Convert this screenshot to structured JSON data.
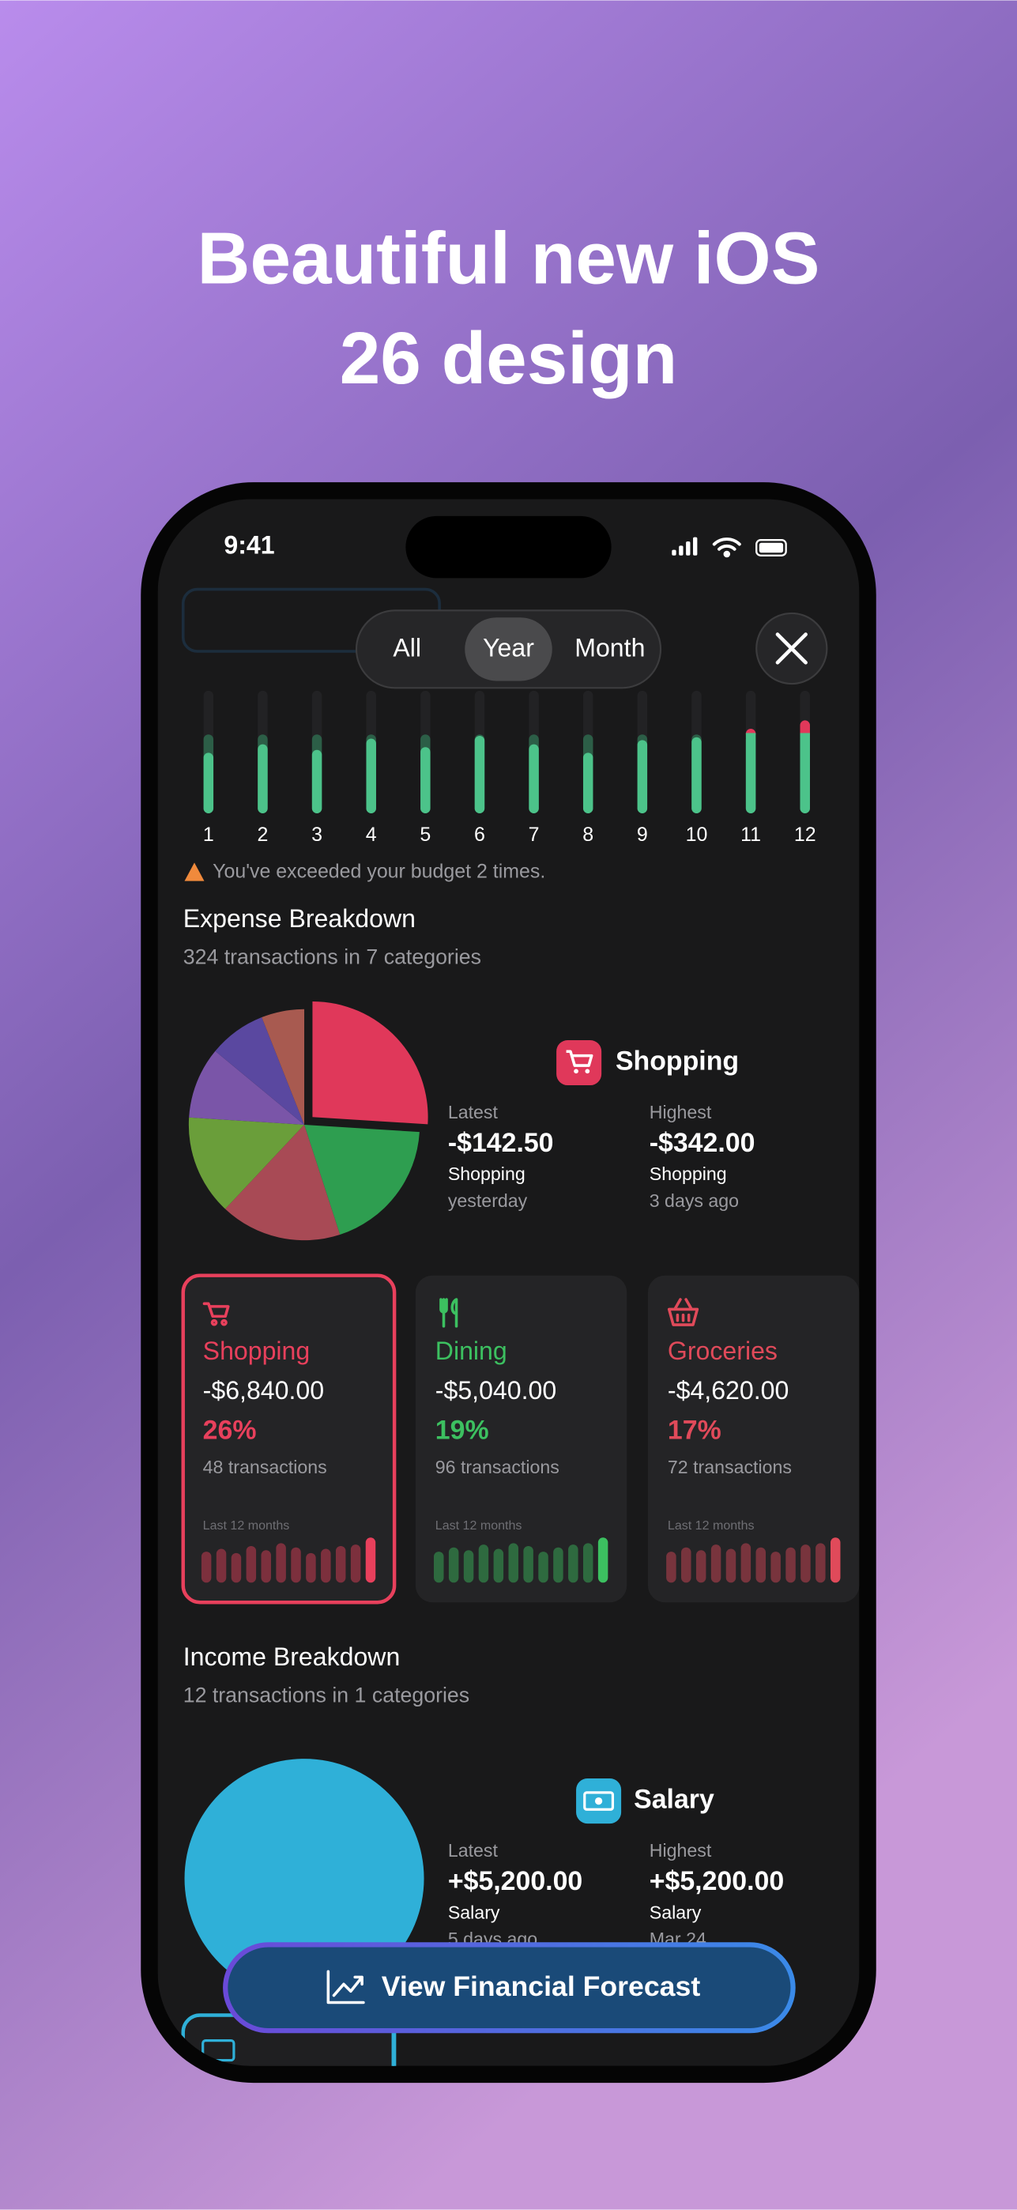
{
  "header": {
    "title_lines": [
      "Beautiful new iOS",
      "26 design"
    ]
  },
  "status_bar": {
    "time": "9:41"
  },
  "segmented_control": {
    "options": [
      "All",
      "Year",
      "Month"
    ],
    "selected": 1
  },
  "monthly_chart": {
    "type": "bar",
    "categories": [
      "1",
      "2",
      "3",
      "4",
      "5",
      "6",
      "7",
      "8",
      "9",
      "10",
      "11",
      "12"
    ],
    "values": [
      43,
      49,
      45,
      53,
      47,
      55,
      49,
      43,
      52,
      54,
      60,
      66
    ],
    "budget": 56,
    "color": "#4cc38a",
    "budget_color": "#2c5e47",
    "over_color": "#e0385a"
  },
  "budget_warning": "You've exceeded your budget 2 times.",
  "expense": {
    "title": "Expense Breakdown",
    "subtitle": "324 transactions in 7 categories",
    "pie": {
      "type": "pie",
      "values": [
        26,
        19,
        17,
        14,
        10,
        8,
        6
      ],
      "colors": [
        "#e0385a",
        "#2e9e50",
        "#a84a55",
        "#6a9e3a",
        "#7a55a8",
        "#5a48a0",
        "#a85a50"
      ]
    },
    "featured": {
      "name": "Shopping",
      "latest": {
        "label": "Latest",
        "amount": "-$142.50",
        "category": "Shopping",
        "when": "yesterday"
      },
      "highest": {
        "label": "Highest",
        "amount": "-$342.00",
        "category": "Shopping",
        "when": "3 days ago"
      }
    },
    "history_label": "Last 12 months",
    "cards": [
      {
        "name": "Shopping",
        "amount": "-$6,840.00",
        "percent": "26%",
        "transactions": "48 transactions",
        "color": "#e8405c",
        "selected": true,
        "history": [
          22,
          24,
          21,
          26,
          23,
          28,
          25,
          21,
          24,
          26,
          27,
          32
        ]
      },
      {
        "name": "Dining",
        "amount": "-$5,040.00",
        "percent": "19%",
        "transactions": "96 transactions",
        "color": "#3cc060",
        "selected": false,
        "history": [
          22,
          25,
          23,
          27,
          24,
          28,
          26,
          22,
          25,
          27,
          28,
          32
        ]
      },
      {
        "name": "Groceries",
        "amount": "-$4,620.00",
        "percent": "17%",
        "transactions": "72 transactions",
        "color": "#e04a5a",
        "selected": false,
        "history": [
          22,
          25,
          23,
          27,
          24,
          28,
          25,
          22,
          25,
          27,
          28,
          32
        ]
      }
    ]
  },
  "income": {
    "title": "Income Breakdown",
    "subtitle": "12 transactions in 1 categories",
    "pie": {
      "type": "pie",
      "values": [
        100
      ],
      "colors": [
        "#2fb0d8"
      ]
    },
    "featured": {
      "name": "Salary",
      "latest": {
        "label": "Latest",
        "amount": "+$5,200.00",
        "category": "Salary",
        "when": "5 days ago"
      },
      "highest": {
        "label": "Highest",
        "amount": "+$5,200.00",
        "category": "Salary",
        "when": "Mar 24"
      }
    }
  },
  "forecast_button": "View Financial Forecast"
}
